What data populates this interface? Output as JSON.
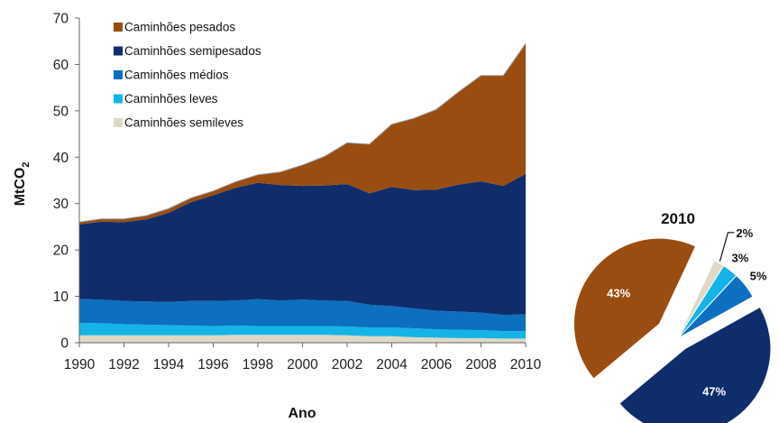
{
  "chart_data": [
    {
      "type": "area",
      "stacked": true,
      "title": "",
      "xlabel": "Ano",
      "ylabel_main": "MtCO",
      "ylabel_sub": "2",
      "ylim": [
        0,
        70
      ],
      "yticks": [
        0,
        10,
        20,
        30,
        40,
        50,
        60,
        70
      ],
      "xticks": [
        1990,
        1992,
        1994,
        1996,
        1998,
        2000,
        2002,
        2004,
        2006,
        2008,
        2010
      ],
      "x": [
        1990,
        1991,
        1992,
        1993,
        1994,
        1995,
        1996,
        1997,
        1998,
        1999,
        2000,
        2001,
        2002,
        2003,
        2004,
        2005,
        2006,
        2007,
        2008,
        2009,
        2010
      ],
      "legend_position": "top-left",
      "series": [
        {
          "name": "Caminhões semileves",
          "color": "#ddd9c4",
          "values": [
            1.6,
            1.6,
            1.6,
            1.6,
            1.6,
            1.6,
            1.6,
            1.7,
            1.7,
            1.7,
            1.7,
            1.7,
            1.6,
            1.4,
            1.4,
            1.2,
            1.1,
            1.0,
            1.0,
            0.9,
            0.9
          ]
        },
        {
          "name": "Caminhões leves",
          "color": "#14b4e8",
          "values": [
            2.7,
            2.6,
            2.4,
            2.3,
            2.2,
            2.1,
            2.0,
            2.0,
            1.9,
            1.9,
            1.9,
            1.9,
            1.9,
            1.9,
            1.9,
            1.9,
            1.8,
            1.8,
            1.7,
            1.6,
            1.6
          ]
        },
        {
          "name": "Caminhões médios",
          "color": "#0c6fc0",
          "values": [
            5.1,
            5.1,
            5.0,
            5.0,
            5.0,
            5.3,
            5.4,
            5.4,
            5.8,
            5.5,
            5.7,
            5.5,
            5.5,
            4.9,
            4.6,
            4.3,
            4.0,
            3.9,
            3.8,
            3.5,
            3.6
          ]
        },
        {
          "name": "Caminhões semipesados",
          "color": "#0f2d6b",
          "values": [
            16.1,
            16.8,
            17.0,
            17.7,
            19.2,
            21.3,
            22.8,
            24.3,
            25.1,
            24.9,
            24.5,
            24.8,
            25.2,
            24.0,
            25.7,
            25.5,
            26.1,
            27.4,
            28.3,
            27.8,
            30.3
          ]
        },
        {
          "name": "Caminhões pesados",
          "color": "#9a4d11",
          "values": [
            0.5,
            0.6,
            0.7,
            0.8,
            0.9,
            0.9,
            0.9,
            1.3,
            1.7,
            2.8,
            4.5,
            6.3,
            8.9,
            10.6,
            13.5,
            15.5,
            17.3,
            20.0,
            22.8,
            23.8,
            28.1
          ]
        }
      ]
    },
    {
      "type": "pie",
      "title": "2010",
      "slices": [
        {
          "name": "Caminhões semileves",
          "value": 2,
          "label": "2%",
          "color": "#ddd9c4"
        },
        {
          "name": "Caminhões leves",
          "value": 3,
          "label": "3%",
          "color": "#14b4e8"
        },
        {
          "name": "Caminhões médios",
          "value": 5,
          "label": "5%",
          "color": "#0c6fc0"
        },
        {
          "name": "Caminhões semipesados",
          "value": 47,
          "label": "47%",
          "color": "#0f2d6b"
        },
        {
          "name": "Caminhões pesados",
          "value": 43,
          "label": "43%",
          "color": "#9a4d11"
        }
      ]
    }
  ]
}
